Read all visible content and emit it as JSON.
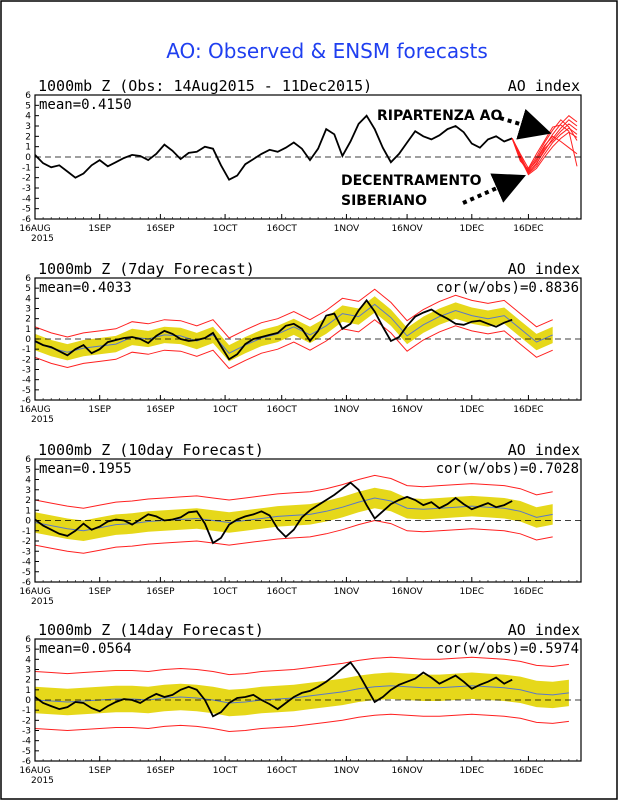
{
  "title": "AO: Observed & ENSM forecasts",
  "annotations": {
    "ripartenza": "RIPARTENZA AO",
    "decentramento_line1": "DECENTRAMENTO",
    "decentramento_line2": "SIBERIANO"
  },
  "colors": {
    "title": "#1f3ff0",
    "observed": "#000000",
    "ensemble": "#ff2020",
    "spread_band": "#e6d81a",
    "ensemble_mean": "#5a78c8",
    "zero_line": "#000000"
  },
  "chart_data": [
    {
      "type": "line",
      "panel_title": "1000mb Z (Obs: 14Aug2015 - 11Dec2015)",
      "index_label": "AO index",
      "mean_label": "mean=0.4150",
      "cor_label": "",
      "ylim": [
        -6,
        6
      ],
      "yticks": [
        "6",
        "5",
        "4",
        "3",
        "2",
        "1",
        "0",
        "-1",
        "-2",
        "-3",
        "-4",
        "-5",
        "-6"
      ],
      "xlim": [
        0,
        135
      ],
      "xtick_days": [
        0,
        16,
        31,
        47,
        61,
        77,
        92,
        108,
        122
      ],
      "xticks": [
        "16AUG",
        "1SEP",
        "16SEP",
        "1OCT",
        "16OCT",
        "1NOV",
        "16NOV",
        "1DEC",
        "16DEC"
      ],
      "xyear": "2015",
      "observed": {
        "x": [
          0,
          2,
          4,
          6,
          8,
          10,
          12,
          14,
          16,
          18,
          20,
          22,
          24,
          26,
          28,
          30,
          32,
          34,
          36,
          38,
          40,
          42,
          44,
          46,
          48,
          50,
          52,
          54,
          56,
          58,
          60,
          62,
          64,
          66,
          68,
          70,
          72,
          74,
          76,
          78,
          80,
          82,
          84,
          86,
          88,
          90,
          92,
          94,
          96,
          98,
          100,
          102,
          104,
          106,
          108,
          110,
          112,
          114,
          116,
          118
        ],
        "y": [
          0.2,
          -0.6,
          -1.0,
          -0.8,
          -1.4,
          -2.0,
          -1.6,
          -0.8,
          -0.3,
          -0.9,
          -0.5,
          -0.1,
          0.2,
          0.1,
          -0.3,
          0.3,
          1.2,
          0.6,
          -0.2,
          0.4,
          0.5,
          1.0,
          0.8,
          -0.8,
          -2.2,
          -1.8,
          -0.7,
          -0.2,
          0.3,
          0.7,
          0.5,
          0.9,
          1.4,
          0.8,
          -0.3,
          0.8,
          2.7,
          2.2,
          0.1,
          1.5,
          3.2,
          4.0,
          2.7,
          0.9,
          -0.5,
          0.3,
          1.4,
          2.5,
          2.0,
          1.7,
          2.1,
          2.7,
          3.0,
          2.4,
          1.3,
          0.9,
          1.7,
          2.0,
          1.5,
          1.8
        ]
      },
      "ensemble": {
        "x": [
          118,
          120,
          122,
          124,
          126,
          128,
          130,
          132,
          134
        ],
        "members": [
          [
            1.8,
            0.0,
            -1.5,
            -0.6,
            0.6,
            1.8,
            2.8,
            3.6,
            3.0
          ],
          [
            1.8,
            -0.2,
            -1.3,
            -0.4,
            1.0,
            2.2,
            3.2,
            4.0,
            3.4
          ],
          [
            1.8,
            0.2,
            -1.6,
            -0.9,
            0.3,
            1.4,
            2.2,
            2.8,
            2.2
          ],
          [
            1.8,
            -0.4,
            -1.2,
            0.0,
            1.4,
            2.6,
            3.6,
            2.9,
            1.6
          ],
          [
            1.8,
            0.1,
            -1.4,
            -0.2,
            1.1,
            2.0,
            1.5,
            0.9,
            0.3
          ],
          [
            1.8,
            -0.1,
            -1.7,
            -1.1,
            0.0,
            1.0,
            1.8,
            2.4,
            1.9
          ],
          [
            1.8,
            0.3,
            -1.1,
            0.3,
            1.6,
            2.9,
            3.1,
            2.5,
            -0.9
          ],
          [
            1.8,
            -0.3,
            -1.5,
            -0.7,
            0.8,
            1.6,
            2.5,
            3.2,
            2.6
          ]
        ]
      }
    },
    {
      "type": "line",
      "panel_title": "1000mb Z (7day Forecast)",
      "index_label": "AO index",
      "mean_label": "mean=0.4033",
      "cor_label": "cor(w/obs)=0.8836",
      "ylim": [
        -6,
        6
      ],
      "yticks": [
        "6",
        "5",
        "4",
        "3",
        "2",
        "1",
        "0",
        "-1",
        "-2",
        "-3",
        "-4",
        "-5",
        "-6"
      ],
      "xlim": [
        0,
        135
      ],
      "xtick_days": [
        0,
        16,
        31,
        47,
        61,
        77,
        92,
        108,
        122
      ],
      "xticks": [
        "16AUG",
        "1SEP",
        "16SEP",
        "1OCT",
        "16OCT",
        "1NOV",
        "16NOV",
        "1DEC",
        "16DEC"
      ],
      "xyear": "2015",
      "band_half_width": 0.8,
      "spread_half_width": 1.5,
      "observed_x": [
        0,
        2,
        4,
        6,
        8,
        10,
        12,
        14,
        16,
        18,
        20,
        22,
        24,
        26,
        28,
        30,
        32,
        34,
        36,
        38,
        40,
        42,
        44,
        46,
        48,
        50,
        52,
        54,
        56,
        58,
        60,
        62,
        64,
        66,
        68,
        70,
        72,
        74,
        76,
        78,
        80,
        82,
        84,
        86,
        88,
        90,
        92,
        94,
        96,
        98,
        100,
        102,
        104,
        106,
        108,
        110,
        112,
        114,
        116,
        118
      ],
      "observed_y": [
        -0.2,
        -0.6,
        -0.8,
        -1.2,
        -1.6,
        -1.0,
        -0.6,
        -1.4,
        -1.0,
        -0.3,
        -0.1,
        0.1,
        0.2,
        0.0,
        -0.4,
        0.3,
        0.8,
        0.5,
        0.0,
        -0.2,
        -0.1,
        0.1,
        0.6,
        -0.7,
        -2.0,
        -1.5,
        -0.5,
        0.0,
        0.2,
        0.4,
        0.6,
        1.3,
        1.5,
        1.0,
        -0.2,
        0.8,
        2.3,
        2.5,
        1.0,
        1.5,
        2.8,
        3.8,
        2.7,
        1.2,
        -0.2,
        0.2,
        1.3,
        2.2,
        2.6,
        2.9,
        2.4,
        2.0,
        1.5,
        1.4,
        1.7,
        1.8,
        1.5,
        1.2,
        1.6,
        1.9
      ],
      "forecast_x": [
        0,
        4,
        8,
        12,
        16,
        20,
        24,
        28,
        32,
        36,
        40,
        44,
        48,
        52,
        56,
        60,
        64,
        68,
        72,
        76,
        80,
        84,
        88,
        92,
        96,
        100,
        104,
        108,
        112,
        116,
        120,
        124,
        128
      ],
      "forecast_y": [
        -0.3,
        -0.9,
        -1.3,
        -0.9,
        -0.7,
        -0.5,
        0.2,
        0.0,
        0.4,
        0.3,
        -0.2,
        0.4,
        -1.4,
        -0.6,
        0.1,
        0.5,
        1.2,
        0.4,
        1.3,
        2.5,
        2.2,
        3.4,
        2.1,
        0.3,
        1.4,
        2.2,
        2.8,
        2.3,
        2.0,
        2.3,
        1.0,
        -0.3,
        0.4
      ]
    },
    {
      "type": "line",
      "panel_title": "1000mb Z (10day Forecast)",
      "index_label": "AO index",
      "mean_label": "mean=0.1955",
      "cor_label": "cor(w/obs)=0.7028",
      "ylim": [
        -6,
        6
      ],
      "yticks": [
        "6",
        "5",
        "4",
        "3",
        "2",
        "1",
        "0",
        "-1",
        "-2",
        "-3",
        "-4",
        "-5",
        "-6"
      ],
      "xlim": [
        0,
        135
      ],
      "xtick_days": [
        0,
        16,
        31,
        47,
        61,
        77,
        92,
        108,
        122
      ],
      "xticks": [
        "16AUG",
        "1SEP",
        "16SEP",
        "1OCT",
        "16OCT",
        "1NOV",
        "16NOV",
        "1DEC",
        "16DEC"
      ],
      "xyear": "2015",
      "band_half_width": 1.0,
      "spread_half_width": 2.2,
      "observed_x": [
        0,
        2,
        4,
        6,
        8,
        10,
        12,
        14,
        16,
        18,
        20,
        22,
        24,
        26,
        28,
        30,
        32,
        34,
        36,
        38,
        40,
        42,
        44,
        46,
        48,
        50,
        52,
        54,
        56,
        58,
        60,
        62,
        64,
        66,
        68,
        70,
        72,
        74,
        76,
        78,
        80,
        82,
        84,
        86,
        88,
        90,
        92,
        94,
        96,
        98,
        100,
        102,
        104,
        106,
        108,
        110,
        112,
        114,
        116,
        118
      ],
      "observed_y": [
        0.1,
        -0.5,
        -0.9,
        -1.3,
        -1.5,
        -1.0,
        -0.3,
        -0.9,
        -0.6,
        -0.1,
        0.1,
        0.0,
        -0.4,
        0.1,
        0.6,
        0.4,
        0.0,
        0.1,
        0.3,
        0.8,
        0.9,
        -0.3,
        -2.2,
        -1.7,
        -0.4,
        0.1,
        0.4,
        0.6,
        0.9,
        0.5,
        -0.8,
        -1.6,
        -0.9,
        0.3,
        1.0,
        1.5,
        2.0,
        2.5,
        3.1,
        3.7,
        3.0,
        1.5,
        0.2,
        0.9,
        1.6,
        2.0,
        2.3,
        2.0,
        1.5,
        1.8,
        1.2,
        1.6,
        2.2,
        1.6,
        1.1,
        1.4,
        1.7,
        1.3,
        1.5,
        1.9
      ],
      "forecast_x": [
        0,
        4,
        8,
        12,
        16,
        20,
        24,
        28,
        32,
        36,
        40,
        44,
        48,
        52,
        56,
        60,
        64,
        68,
        72,
        76,
        80,
        84,
        88,
        92,
        96,
        100,
        104,
        108,
        112,
        116,
        120,
        124,
        128
      ],
      "forecast_y": [
        -0.2,
        -0.5,
        -0.8,
        -1.0,
        -0.7,
        -0.4,
        -0.3,
        -0.1,
        0.0,
        0.1,
        0.2,
        0.0,
        -0.2,
        0.0,
        0.2,
        0.4,
        0.5,
        0.6,
        0.9,
        1.3,
        1.8,
        2.2,
        1.9,
        1.2,
        1.1,
        1.2,
        1.3,
        1.4,
        1.3,
        1.2,
        0.9,
        0.3,
        0.6
      ]
    },
    {
      "type": "line",
      "panel_title": "1000mb Z (14day Forecast)",
      "index_label": "AO index",
      "mean_label": "mean=0.0564",
      "cor_label": "cor(w/obs)=0.5974",
      "ylim": [
        -6,
        6
      ],
      "yticks": [
        "6",
        "5",
        "4",
        "3",
        "2",
        "1",
        "0",
        "-1",
        "-2",
        "-3",
        "-4",
        "-5",
        "-6"
      ],
      "xlim": [
        0,
        135
      ],
      "xtick_days": [
        0,
        16,
        31,
        47,
        61,
        77,
        92,
        108,
        122
      ],
      "xticks": [
        "16AUG",
        "1SEP",
        "16SEP",
        "1OCT",
        "16OCT",
        "1NOV",
        "16NOV",
        "1DEC",
        "16DEC"
      ],
      "xyear": "2015",
      "band_half_width": 1.3,
      "spread_half_width": 2.8,
      "observed_x": [
        0,
        2,
        4,
        6,
        8,
        10,
        12,
        14,
        16,
        18,
        20,
        22,
        24,
        26,
        28,
        30,
        32,
        34,
        36,
        38,
        40,
        42,
        44,
        46,
        48,
        50,
        52,
        54,
        56,
        58,
        60,
        62,
        64,
        66,
        68,
        70,
        72,
        74,
        76,
        78,
        80,
        82,
        84,
        86,
        88,
        90,
        92,
        94,
        96,
        98,
        100,
        102,
        104,
        106,
        108,
        110,
        112,
        114,
        116,
        118
      ],
      "observed_y": [
        0.3,
        -0.3,
        -0.6,
        -0.9,
        -0.7,
        -0.2,
        -0.3,
        -0.8,
        -1.1,
        -0.6,
        -0.2,
        0.1,
        0.0,
        -0.3,
        0.2,
        0.6,
        0.3,
        0.5,
        1.0,
        1.3,
        1.0,
        0.0,
        -1.6,
        -1.2,
        -0.3,
        0.2,
        0.3,
        0.5,
        0.0,
        -0.4,
        -0.9,
        -0.3,
        0.3,
        0.7,
        0.9,
        1.3,
        1.8,
        2.4,
        3.1,
        3.7,
        2.6,
        1.2,
        -0.2,
        0.3,
        1.0,
        1.5,
        1.8,
        2.1,
        2.7,
        2.2,
        1.6,
        2.0,
        2.4,
        1.8,
        1.1,
        1.5,
        1.8,
        2.2,
        1.6,
        2.0
      ],
      "forecast_x": [
        0,
        4,
        8,
        12,
        16,
        20,
        24,
        28,
        32,
        36,
        40,
        44,
        48,
        52,
        56,
        60,
        64,
        68,
        72,
        76,
        80,
        84,
        88,
        92,
        96,
        100,
        104,
        108,
        112,
        116,
        120,
        124,
        128,
        132
      ],
      "forecast_y": [
        0.0,
        -0.1,
        -0.2,
        -0.1,
        0.0,
        0.1,
        0.1,
        0.0,
        0.2,
        0.3,
        0.2,
        0.0,
        -0.3,
        -0.2,
        0.0,
        0.1,
        0.2,
        0.4,
        0.6,
        0.8,
        1.1,
        1.3,
        1.4,
        1.3,
        1.2,
        1.2,
        1.3,
        1.4,
        1.3,
        1.2,
        1.0,
        0.6,
        0.5,
        0.7
      ]
    }
  ]
}
